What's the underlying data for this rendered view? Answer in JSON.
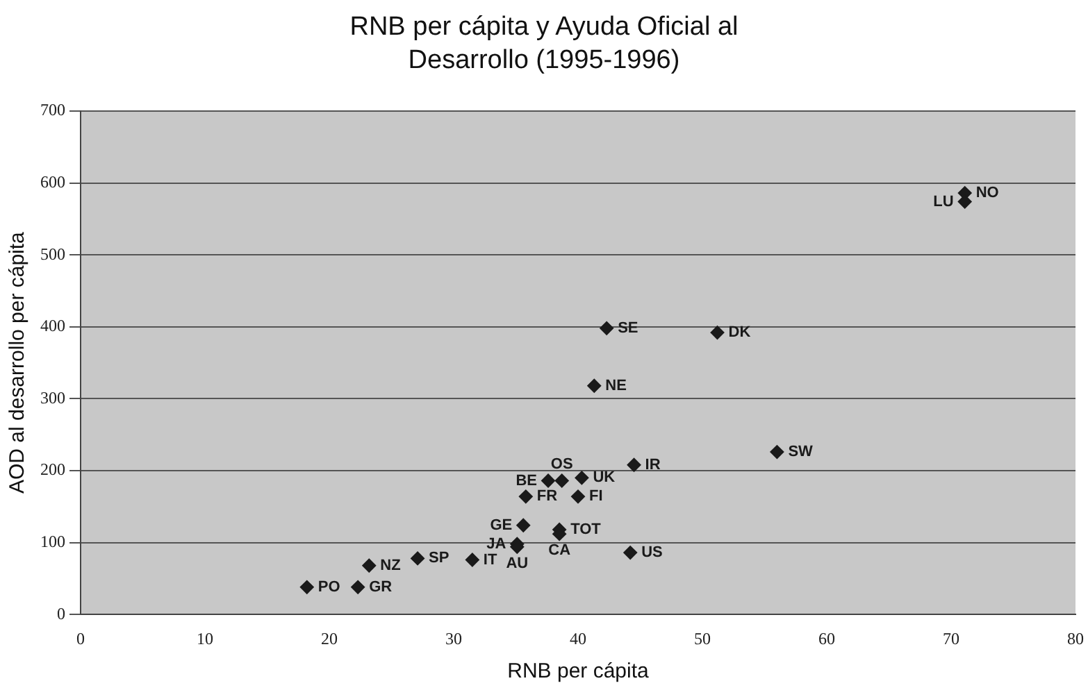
{
  "chart_data": {
    "type": "scatter",
    "title": "RNB per cápita y Ayuda Oficial al Desarrollo (1995-1996)",
    "xlabel": "RNB per cápita",
    "ylabel": "AOD al desarrollo per cápita",
    "x": [
      71.1,
      71.1,
      42.3,
      51.2,
      41.3,
      56.0,
      44.5,
      37.6,
      38.7,
      40.3,
      35.8,
      40.0,
      35.6,
      38.5,
      38.5,
      35.1,
      35.1,
      44.2,
      31.5,
      27.1,
      23.2,
      18.2,
      22.3
    ],
    "series": [
      {
        "color": "#1a1a1a",
        "values": [
          586,
          574,
          398,
          392,
          318,
          226,
          208,
          186,
          186,
          190,
          164,
          164,
          124,
          118,
          112,
          98,
          94,
          86,
          76,
          78,
          68,
          38,
          38
        ]
      }
    ],
    "xlim": [
      0,
      80
    ],
    "xticks": [
      0,
      10,
      20,
      30,
      40,
      50,
      60,
      70,
      80
    ],
    "ylim": [
      0,
      700
    ],
    "yticks": [
      0,
      100,
      200,
      300,
      400,
      500,
      600,
      700
    ],
    "grid": "y",
    "marker": "diamond",
    "legend": false,
    "annotations": [
      {
        "text": "NO",
        "x": 71.1,
        "y": 586
      },
      {
        "text": "LU",
        "x": 71.1,
        "y": 574
      },
      {
        "text": "SE",
        "x": 42.3,
        "y": 398
      },
      {
        "text": "DK",
        "x": 51.2,
        "y": 392
      },
      {
        "text": "NE",
        "x": 41.3,
        "y": 318
      },
      {
        "text": "SW",
        "x": 56.0,
        "y": 226
      },
      {
        "text": "IR",
        "x": 44.5,
        "y": 208
      },
      {
        "text": "OS",
        "x": 38.7,
        "y": 186
      },
      {
        "text": "BE",
        "x": 37.6,
        "y": 186
      },
      {
        "text": "UK",
        "x": 40.3,
        "y": 190
      },
      {
        "text": "FR",
        "x": 35.8,
        "y": 164
      },
      {
        "text": "FI",
        "x": 40.0,
        "y": 164
      },
      {
        "text": "GE",
        "x": 35.6,
        "y": 124
      },
      {
        "text": "TOT",
        "x": 38.5,
        "y": 118
      },
      {
        "text": "CA",
        "x": 38.5,
        "y": 112
      },
      {
        "text": "JA",
        "x": 35.1,
        "y": 98
      },
      {
        "text": "AU",
        "x": 35.1,
        "y": 94
      },
      {
        "text": "US",
        "x": 44.2,
        "y": 86
      },
      {
        "text": "IT",
        "x": 31.5,
        "y": 76
      },
      {
        "text": "SP",
        "x": 27.1,
        "y": 78
      },
      {
        "text": "NZ",
        "x": 23.2,
        "y": 68
      },
      {
        "text": "PO",
        "x": 18.2,
        "y": 38
      },
      {
        "text": "GR",
        "x": 22.3,
        "y": 38
      }
    ]
  }
}
